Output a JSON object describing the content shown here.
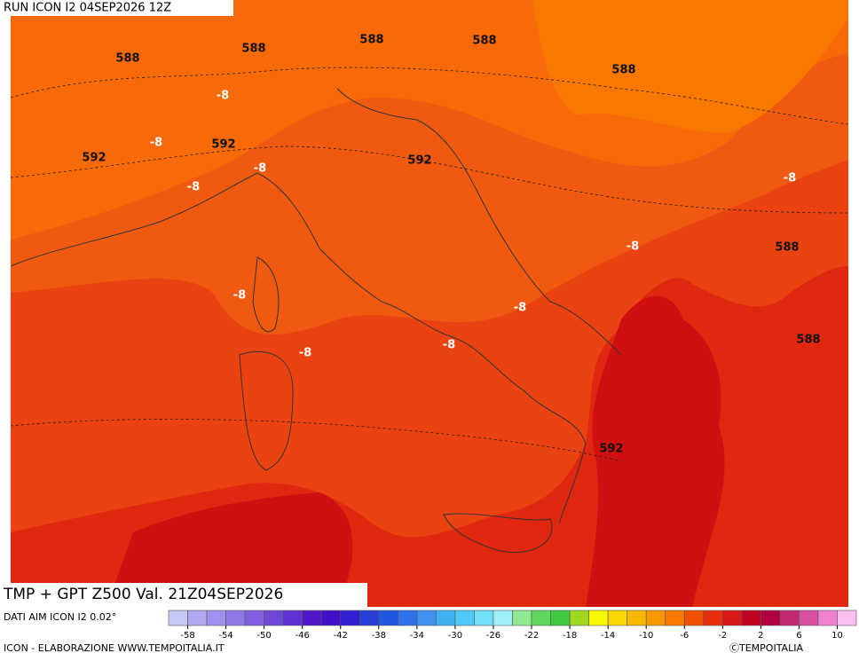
{
  "header": {
    "run": "RUN ICON I2 04SEP2026 12Z"
  },
  "footer": {
    "title": "TMP + GPT Z500 Val. 21Z04SEP2026",
    "data_source": "DATI AIM ICON I2 0.02°",
    "credit": "ICON - ELABORAZIONE WWW.TEMPOITALIA.IT",
    "copyright": "ⒸTEMPOITALIA"
  },
  "map_labels": [
    "588",
    "588",
    "588",
    "588",
    "588",
    "588",
    "588",
    "592",
    "592",
    "592",
    "592",
    "-8",
    "-8",
    "-8",
    "-8",
    "-8",
    "-8",
    "-8",
    "-8",
    "-8",
    "-8"
  ],
  "colorbar": {
    "labels": [
      -58,
      -54,
      -50,
      -46,
      -42,
      -38,
      -34,
      -30,
      -26,
      -22,
      -18,
      -14,
      -10,
      -6,
      -2,
      2,
      6,
      10
    ],
    "colors": [
      "#c8c8f8",
      "#b0a8f0",
      "#a090f0",
      "#9078e8",
      "#8060e0",
      "#7048d8",
      "#6030d0",
      "#5018c8",
      "#4010c8",
      "#3020d0",
      "#2840d8",
      "#2058e0",
      "#3070e8",
      "#4090f0",
      "#40b0f0",
      "#50c8f8",
      "#70e0f8",
      "#a0f0f8",
      "#90e890",
      "#60d860",
      "#40c840",
      "#a0d820",
      "#f8f800",
      "#f8d800",
      "#f8b800",
      "#f89800",
      "#f87800",
      "#f05000",
      "#e83010",
      "#d81818",
      "#c00020",
      "#b00040",
      "#c02870",
      "#d850a0",
      "#f080d0",
      "#fcc0f0"
    ]
  }
}
